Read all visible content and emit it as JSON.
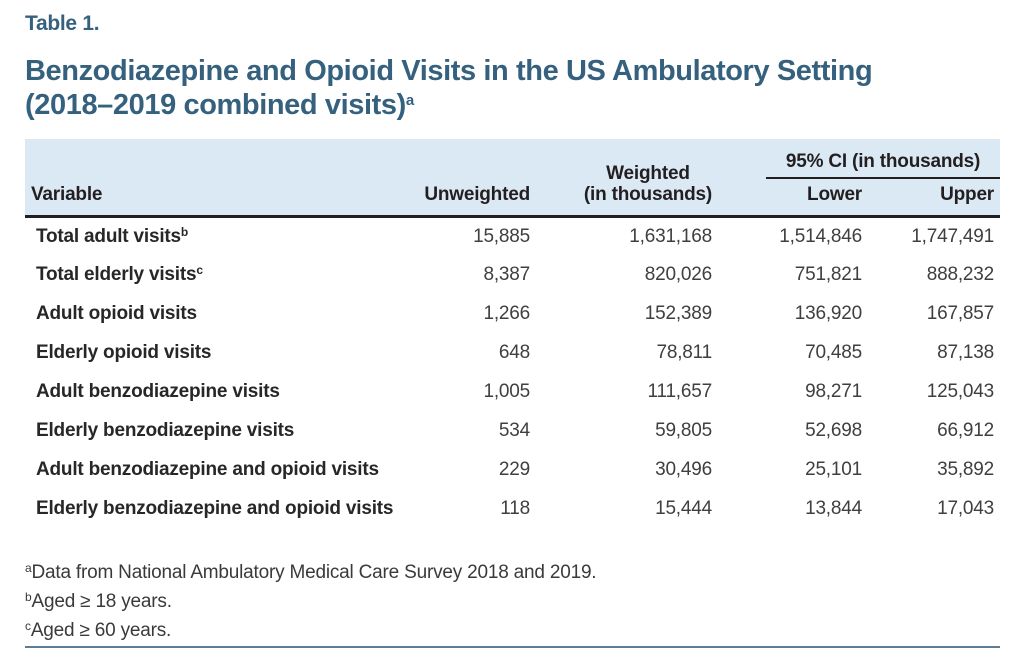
{
  "colors": {
    "accent": "#35617f",
    "header-bg": "#dbe9f5",
    "ink": "#231f20",
    "value-ink": "#3f3e40",
    "rule": "#5d7d97"
  },
  "header": {
    "table_label": "Table 1.",
    "title_line1": "Benzodiazepine and Opioid Visits in the US Ambulatory Setting",
    "title_line2": "(2018–2019 combined visits)",
    "title_superscript": "a"
  },
  "table": {
    "columns": {
      "variable": "Variable",
      "unweighted": "Unweighted",
      "weighted_line1": "Weighted",
      "weighted_line2": "(in thousands)",
      "ci_group": "95% CI (in thousands)",
      "lower": "Lower",
      "upper": "Upper"
    },
    "rows": [
      {
        "label": "Total adult visits",
        "sup": "b",
        "unweighted": "15,885",
        "weighted": "1,631,168",
        "lower": "1,514,846",
        "upper": "1,747,491"
      },
      {
        "label": "Total elderly visits",
        "sup": "c",
        "unweighted": "8,387",
        "weighted": "820,026",
        "lower": "751,821",
        "upper": "888,232"
      },
      {
        "label": "Adult opioid visits",
        "sup": "",
        "unweighted": "1,266",
        "weighted": "152,389",
        "lower": "136,920",
        "upper": "167,857"
      },
      {
        "label": "Elderly opioid visits",
        "sup": "",
        "unweighted": "648",
        "weighted": "78,811",
        "lower": "70,485",
        "upper": "87,138"
      },
      {
        "label": "Adult benzodiazepine visits",
        "sup": "",
        "unweighted": "1,005",
        "weighted": "111,657",
        "lower": "98,271",
        "upper": "125,043"
      },
      {
        "label": "Elderly benzodiazepine visits",
        "sup": "",
        "unweighted": "534",
        "weighted": "59,805",
        "lower": "52,698",
        "upper": "66,912"
      },
      {
        "label": "Adult benzodiazepine and opioid visits",
        "sup": "",
        "unweighted": "229",
        "weighted": "30,496",
        "lower": "25,101",
        "upper": "35,892"
      },
      {
        "label": "Elderly benzodiazepine and opioid visits",
        "sup": "",
        "unweighted": "118",
        "weighted": "15,444",
        "lower": "13,844",
        "upper": "17,043"
      }
    ]
  },
  "footnotes": [
    {
      "sup": "a",
      "text": "Data from National Ambulatory Medical Care Survey 2018 and 2019."
    },
    {
      "sup": "b",
      "text": "Aged ≥ 18 years."
    },
    {
      "sup": "c",
      "text": "Aged ≥ 60 years."
    }
  ]
}
